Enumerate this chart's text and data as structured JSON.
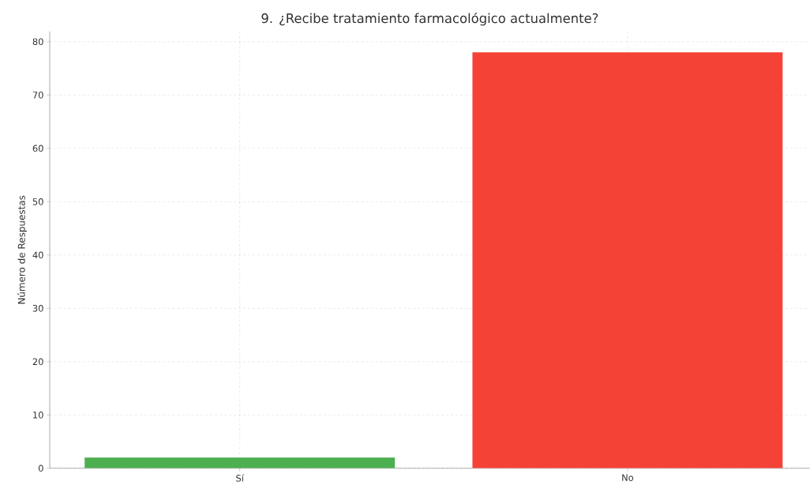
{
  "chart_data": {
    "type": "bar",
    "title": "9. ¿Recibe tratamiento farmacológico actualmente?",
    "ylabel": "Número de Respuestas",
    "categories": [
      "Sí",
      "No"
    ],
    "values": [
      2,
      78
    ],
    "colors": [
      "#4caf50",
      "#f44336"
    ],
    "ylim": [
      0,
      81.9
    ],
    "yticks": [
      0,
      10,
      20,
      30,
      40,
      50,
      60,
      70,
      80
    ],
    "grid": true
  }
}
